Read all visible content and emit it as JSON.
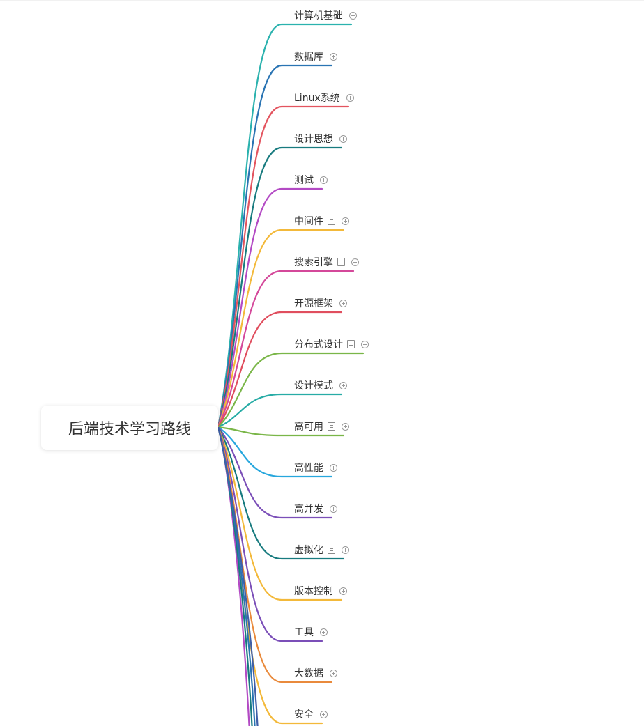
{
  "mindmap": {
    "root": {
      "label": "后端技术学习路线"
    },
    "branches": [
      {
        "label": "计算机基础",
        "color": "#2BB2AE",
        "has_note": false,
        "collapsed": true
      },
      {
        "label": "数据库",
        "color": "#2A74B3",
        "has_note": false,
        "collapsed": true
      },
      {
        "label": "Linux系统",
        "color": "#E3545F",
        "has_note": false,
        "collapsed": true
      },
      {
        "label": "设计思想",
        "color": "#187B7F",
        "has_note": false,
        "collapsed": true
      },
      {
        "label": "测试",
        "color": "#B34AC4",
        "has_note": false,
        "collapsed": true
      },
      {
        "label": "中间件",
        "color": "#F3B93A",
        "has_note": true,
        "collapsed": true
      },
      {
        "label": "搜索引擎",
        "color": "#D4489A",
        "has_note": true,
        "collapsed": true
      },
      {
        "label": "开源框架",
        "color": "#E04E5E",
        "has_note": false,
        "collapsed": true
      },
      {
        "label": "分布式设计",
        "color": "#7AB648",
        "has_note": true,
        "collapsed": true
      },
      {
        "label": "设计模式",
        "color": "#28ACA6",
        "has_note": false,
        "collapsed": true
      },
      {
        "label": "高可用",
        "color": "#7AB648",
        "has_note": true,
        "collapsed": true
      },
      {
        "label": "高性能",
        "color": "#27A7DD",
        "has_note": false,
        "collapsed": true
      },
      {
        "label": "高并发",
        "color": "#7B4FB8",
        "has_note": false,
        "collapsed": true
      },
      {
        "label": "虚拟化",
        "color": "#187B7F",
        "has_note": true,
        "collapsed": true
      },
      {
        "label": "版本控制",
        "color": "#F3B93A",
        "has_note": false,
        "collapsed": true
      },
      {
        "label": "工具",
        "color": "#7B4FB8",
        "has_note": false,
        "collapsed": true
      },
      {
        "label": "大数据",
        "color": "#E98A3C",
        "has_note": false,
        "collapsed": true
      },
      {
        "label": "安全",
        "color": "#F3B93A",
        "has_note": false,
        "collapsed": true
      }
    ],
    "offscreen_branch_colors": [
      "#B34AC4",
      "#187B7F",
      "#2A74B3",
      "#3F5FA8"
    ]
  }
}
